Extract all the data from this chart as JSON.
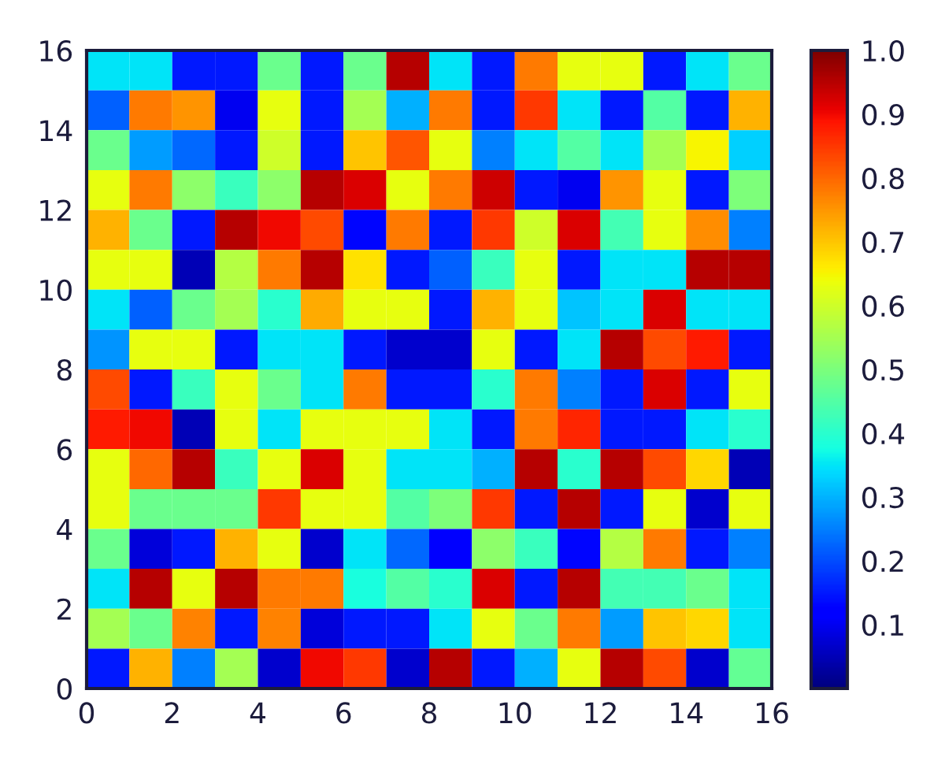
{
  "chart_data": {
    "type": "heatmap",
    "cells": [
      [
        0.35,
        0.35,
        0.15,
        0.15,
        0.48,
        0.15,
        0.48,
        0.95,
        0.35,
        0.15,
        0.78,
        0.63,
        0.63,
        0.15,
        0.35,
        0.48
      ],
      [
        0.22,
        0.78,
        0.75,
        0.1,
        0.63,
        0.15,
        0.55,
        0.3,
        0.78,
        0.15,
        0.85,
        0.35,
        0.15,
        0.45,
        0.15,
        0.72
      ],
      [
        0.48,
        0.28,
        0.23,
        0.15,
        0.6,
        0.15,
        0.7,
        0.82,
        0.63,
        0.25,
        0.35,
        0.45,
        0.35,
        0.55,
        0.65,
        0.33
      ],
      [
        0.63,
        0.78,
        0.52,
        0.42,
        0.52,
        0.95,
        0.92,
        0.63,
        0.78,
        0.93,
        0.15,
        0.1,
        0.75,
        0.63,
        0.15,
        0.5
      ],
      [
        0.72,
        0.48,
        0.15,
        0.95,
        0.9,
        0.83,
        0.13,
        0.78,
        0.15,
        0.85,
        0.6,
        0.92,
        0.43,
        0.63,
        0.76,
        0.25
      ],
      [
        0.63,
        0.63,
        0.05,
        0.57,
        0.78,
        0.95,
        0.67,
        0.15,
        0.22,
        0.42,
        0.63,
        0.15,
        0.35,
        0.35,
        0.95,
        0.95
      ],
      [
        0.35,
        0.22,
        0.48,
        0.55,
        0.4,
        0.73,
        0.63,
        0.63,
        0.15,
        0.72,
        0.63,
        0.32,
        0.35,
        0.92,
        0.35,
        0.35
      ],
      [
        0.27,
        0.63,
        0.63,
        0.15,
        0.35,
        0.35,
        0.15,
        0.07,
        0.07,
        0.63,
        0.15,
        0.35,
        0.95,
        0.83,
        0.88,
        0.15
      ],
      [
        0.83,
        0.15,
        0.42,
        0.63,
        0.48,
        0.35,
        0.78,
        0.15,
        0.15,
        0.4,
        0.78,
        0.25,
        0.15,
        0.92,
        0.15,
        0.63
      ],
      [
        0.88,
        0.9,
        0.05,
        0.63,
        0.35,
        0.63,
        0.63,
        0.63,
        0.35,
        0.15,
        0.78,
        0.87,
        0.15,
        0.15,
        0.35,
        0.4
      ],
      [
        0.63,
        0.8,
        0.95,
        0.42,
        0.63,
        0.92,
        0.63,
        0.35,
        0.35,
        0.3,
        0.95,
        0.4,
        0.95,
        0.83,
        0.68,
        0.05
      ],
      [
        0.63,
        0.48,
        0.48,
        0.48,
        0.85,
        0.63,
        0.63,
        0.45,
        0.5,
        0.85,
        0.15,
        0.95,
        0.15,
        0.63,
        0.07,
        0.63
      ],
      [
        0.48,
        0.08,
        0.15,
        0.72,
        0.63,
        0.07,
        0.35,
        0.23,
        0.12,
        0.52,
        0.42,
        0.13,
        0.57,
        0.78,
        0.15,
        0.25
      ],
      [
        0.35,
        0.95,
        0.63,
        0.95,
        0.78,
        0.78,
        0.38,
        0.45,
        0.4,
        0.92,
        0.15,
        0.95,
        0.43,
        0.43,
        0.48,
        0.35
      ],
      [
        0.55,
        0.48,
        0.77,
        0.15,
        0.77,
        0.08,
        0.15,
        0.15,
        0.35,
        0.63,
        0.48,
        0.78,
        0.28,
        0.7,
        0.68,
        0.35
      ],
      [
        0.15,
        0.72,
        0.25,
        0.55,
        0.07,
        0.9,
        0.85,
        0.07,
        0.95,
        0.15,
        0.3,
        0.63,
        0.95,
        0.83,
        0.07,
        0.47
      ]
    ],
    "xlim": [
      0,
      16
    ],
    "ylim": [
      0,
      16
    ],
    "xticks": [
      0,
      2,
      4,
      6,
      8,
      10,
      12,
      14,
      16
    ],
    "yticks": [
      0,
      2,
      4,
      6,
      8,
      10,
      12,
      14,
      16
    ],
    "clim": [
      0,
      1
    ],
    "cticks": [
      0.1,
      0.2,
      0.3,
      0.4,
      0.5,
      0.6,
      0.7,
      0.8,
      0.9,
      {
        "value": 1,
        "label": "1.0"
      }
    ]
  }
}
